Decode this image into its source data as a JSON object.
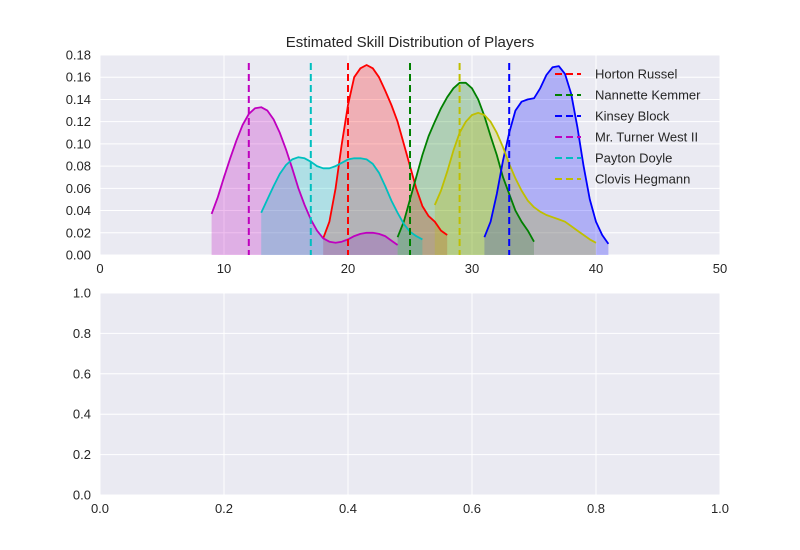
{
  "chart_data": [
    {
      "type": "area",
      "title": "Estimated Skill Distribution of Players",
      "xlabel": "",
      "ylabel": "",
      "xlim": [
        0,
        50
      ],
      "ylim": [
        0,
        0.18
      ],
      "xticks": [
        "0",
        "10",
        "20",
        "30",
        "40",
        "50"
      ],
      "yticks": [
        "0.00",
        "0.02",
        "0.04",
        "0.06",
        "0.08",
        "0.10",
        "0.12",
        "0.14",
        "0.16",
        "0.18"
      ],
      "xtick_values": [
        0,
        10,
        20,
        30,
        40,
        50
      ],
      "ytick_values": [
        0,
        0.02,
        0.04,
        0.06,
        0.08,
        0.1,
        0.12,
        0.14,
        0.16,
        0.18
      ],
      "grid": true,
      "legend_position": "top-right",
      "series": [
        {
          "name": "Horton Russel",
          "color": "#ff0000",
          "mean_line": 20,
          "x": [
            18,
            18.5,
            19,
            19.5,
            20,
            20.5,
            21,
            21.5,
            22,
            22.5,
            23,
            23.5,
            24,
            24.5,
            25,
            25.5,
            26,
            26.5,
            27,
            27.5,
            28
          ],
          "y": [
            0.015,
            0.03,
            0.06,
            0.1,
            0.135,
            0.16,
            0.168,
            0.171,
            0.168,
            0.16,
            0.148,
            0.135,
            0.12,
            0.1,
            0.08,
            0.06,
            0.044,
            0.035,
            0.03,
            0.022,
            0.018
          ]
        },
        {
          "name": "Nannette Kemmer",
          "color": "#008000",
          "mean_line": 25,
          "x": [
            24,
            24.5,
            25,
            25.5,
            26,
            26.5,
            27,
            27.5,
            28,
            28.5,
            29,
            29.5,
            30,
            30.5,
            31,
            31.5,
            32,
            32.5,
            33,
            33.5,
            34,
            34.5,
            35
          ],
          "y": [
            0.016,
            0.03,
            0.05,
            0.07,
            0.09,
            0.107,
            0.12,
            0.132,
            0.142,
            0.15,
            0.155,
            0.155,
            0.15,
            0.14,
            0.125,
            0.107,
            0.09,
            0.07,
            0.055,
            0.04,
            0.03,
            0.022,
            0.012
          ]
        },
        {
          "name": "Kinsey Block",
          "color": "#0000ff",
          "mean_line": 33,
          "x": [
            31,
            31.5,
            32,
            32.5,
            33,
            33.5,
            34,
            34.5,
            35,
            35.5,
            36,
            36.5,
            37,
            37.5,
            38,
            38.5,
            39,
            39.5,
            40,
            40.5,
            41
          ],
          "y": [
            0.016,
            0.03,
            0.055,
            0.085,
            0.11,
            0.13,
            0.138,
            0.14,
            0.141,
            0.15,
            0.162,
            0.169,
            0.17,
            0.163,
            0.145,
            0.115,
            0.08,
            0.05,
            0.03,
            0.018,
            0.01
          ]
        },
        {
          "name": "Mr. Turner West II",
          "color": "#bf00bf",
          "mean_line": 12,
          "x": [
            9,
            9.5,
            10,
            10.5,
            11,
            11.5,
            12,
            12.5,
            13,
            13.5,
            14,
            14.5,
            15,
            15.5,
            16,
            16.5,
            17,
            17.5,
            18,
            18.5,
            19,
            19.5,
            20,
            20.5,
            21,
            21.5,
            22,
            22.5,
            23,
            23.5,
            24
          ],
          "y": [
            0.037,
            0.052,
            0.07,
            0.087,
            0.103,
            0.117,
            0.127,
            0.132,
            0.133,
            0.13,
            0.122,
            0.11,
            0.095,
            0.078,
            0.06,
            0.045,
            0.032,
            0.022,
            0.015,
            0.012,
            0.011,
            0.012,
            0.014,
            0.017,
            0.019,
            0.02,
            0.02,
            0.019,
            0.017,
            0.013,
            0.009
          ]
        },
        {
          "name": "Payton Doyle",
          "color": "#00bfbf",
          "mean_line": 17,
          "x": [
            13,
            13.5,
            14,
            14.5,
            15,
            15.5,
            16,
            16.5,
            17,
            17.5,
            18,
            18.5,
            19,
            19.5,
            20,
            20.5,
            21,
            21.5,
            22,
            22.5,
            23,
            23.5,
            24,
            24.5,
            25,
            25.5,
            26
          ],
          "y": [
            0.038,
            0.05,
            0.062,
            0.073,
            0.081,
            0.086,
            0.088,
            0.087,
            0.084,
            0.08,
            0.078,
            0.078,
            0.08,
            0.083,
            0.086,
            0.087,
            0.087,
            0.086,
            0.082,
            0.074,
            0.062,
            0.049,
            0.038,
            0.028,
            0.021,
            0.017,
            0.014
          ]
        },
        {
          "name": "Clovis Hegmann",
          "color": "#bfbf00",
          "mean_line": 29,
          "x": [
            27,
            27.5,
            28,
            28.5,
            29,
            29.5,
            30,
            30.5,
            31,
            31.5,
            32,
            32.5,
            33,
            33.5,
            34,
            34.5,
            35,
            35.5,
            36,
            36.5,
            37,
            37.5,
            38,
            38.5,
            39,
            39.5,
            40
          ],
          "y": [
            0.045,
            0.058,
            0.075,
            0.094,
            0.11,
            0.12,
            0.126,
            0.128,
            0.126,
            0.12,
            0.11,
            0.097,
            0.082,
            0.069,
            0.058,
            0.049,
            0.043,
            0.039,
            0.036,
            0.034,
            0.032,
            0.03,
            0.026,
            0.022,
            0.018,
            0.014,
            0.011
          ]
        }
      ]
    },
    {
      "type": "line",
      "title": "",
      "xlabel": "",
      "ylabel": "",
      "xlim": [
        0,
        1
      ],
      "ylim": [
        0,
        1
      ],
      "xticks": [
        "0.0",
        "0.2",
        "0.4",
        "0.6",
        "0.8",
        "1.0"
      ],
      "yticks": [
        "0.0",
        "0.2",
        "0.4",
        "0.6",
        "0.8",
        "1.0"
      ],
      "xtick_values": [
        0,
        0.2,
        0.4,
        0.6,
        0.8,
        1.0
      ],
      "ytick_values": [
        0,
        0.2,
        0.4,
        0.6,
        0.8,
        1.0
      ],
      "grid": true,
      "series": []
    }
  ],
  "style": {
    "axes_background": "#eaeaf2",
    "grid_color": "#ffffff",
    "text_color": "#262626"
  }
}
